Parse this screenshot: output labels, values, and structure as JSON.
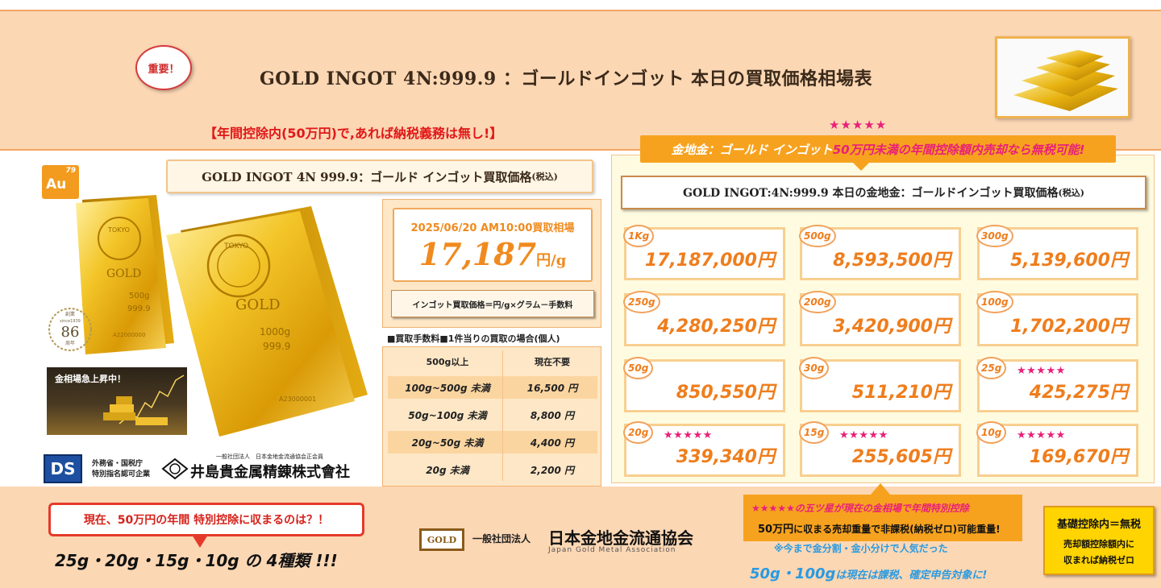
{
  "header": {
    "badge": "重要！",
    "title": "GOLD INGOT 4N:999.9 ：ゴールドインゴット 本日の買取価格相場表",
    "tax_note": "【年間控除内(50万円)で,あれば納税義務は無し!】",
    "stars": "★★★★★"
  },
  "left": {
    "element_symbol": "Au",
    "element_number": "79",
    "title": "GOLD INGOT 4N 999.9：ゴールド インゴット買取価格",
    "title_suffix": "(税込)",
    "ingot_front_text": "GOLD",
    "ingot_front_weight": "1000g",
    "ingot_front_purity": "999.9",
    "ingot_front_serial": "A23000001",
    "ingot_back_weight": "500g",
    "ingot_back_purity": "999.9",
    "ingot_back_serial": "A22000000",
    "ingot_stamp": "TOKYO",
    "anniversary_top": "創業",
    "anniversary_since": "since1939",
    "anniversary_number": "86",
    "anniversary_bottom": "周年",
    "rising_label": "金相場急上昇中！",
    "ds_logo": "DS",
    "ds_line1": "外務省・国税庁",
    "ds_line2": "特別指名認可企業",
    "company_sub": "一般社団法人　日本金地金流通協会正会員",
    "company_name": "井島貴金属精錬株式會社"
  },
  "price": {
    "date": "2025/06/20 AM10:00買取相場",
    "value": "17,187",
    "unit": "円/g",
    "formula": "インゴット買取価格＝円/g×グラム－手数料"
  },
  "fees": {
    "heading": "■買取手数料■1件当りの買取の場合(個人)",
    "rows": [
      {
        "range": "500g以上",
        "fee": "現在不要"
      },
      {
        "range": "100g~500g 未満",
        "fee": "16,500 円"
      },
      {
        "range": "50g~100g 未満",
        "fee": "8,800 円"
      },
      {
        "range": "20g~50g 未満",
        "fee": "4,400 円"
      },
      {
        "range": "20g 未満",
        "fee": "2,200 円"
      }
    ]
  },
  "grid": {
    "banner_a": "金地金：ゴールド インゴット",
    "banner_b": "50万円未満の年間控除額内売却なら無税可能!",
    "title": "GOLD INGOT:4N:999.9 本日の金地金：ゴールドインゴット買取価格",
    "title_suffix": "(税込)",
    "items": [
      {
        "weight": "1Kg",
        "price": "17,187,000円",
        "stars": ""
      },
      {
        "weight": "500g",
        "price": "8,593,500円",
        "stars": ""
      },
      {
        "weight": "300g",
        "price": "5,139,600円",
        "stars": ""
      },
      {
        "weight": "250g",
        "price": "4,280,250円",
        "stars": ""
      },
      {
        "weight": "200g",
        "price": "3,420,900円",
        "stars": ""
      },
      {
        "weight": "100g",
        "price": "1,702,200円",
        "stars": ""
      },
      {
        "weight": "50g",
        "price": "850,550円",
        "stars": ""
      },
      {
        "weight": "30g",
        "price": "511,210円",
        "stars": ""
      },
      {
        "weight": "25g",
        "price": "425,275円",
        "stars": "★★★★★"
      },
      {
        "weight": "20g",
        "price": "339,340円",
        "stars": "★★★★★"
      },
      {
        "weight": "15g",
        "price": "255,605円",
        "stars": "★★★★★"
      },
      {
        "weight": "10g",
        "price": "169,670円",
        "stars": "★★★★★"
      }
    ]
  },
  "bottom": {
    "question": "現在、50万円の年間 特別控除に収まるのは？！",
    "types": "25g・20g・15g・10g の 4種類 !!!",
    "assoc_logo": "GOLD",
    "assoc_pre": "一般社団法人",
    "assoc_name": "日本金地金流通協会",
    "assoc_en": "Japan Gold Metal Association",
    "exempt_line1": "★★★★★の五ツ星が現在の金相場で年間特別控除",
    "exempt_line2_bold": "50万円",
    "exempt_line2_rest": "に収まる売却重量で非課税(納税ゼロ)可能重量!",
    "popular_note": "※今まで金分割・金小分けで人気だった",
    "taxable_bold": "50g・100g",
    "taxable_rest": "は現在は課税、確定申告対象に!",
    "basic_line1": "基礎控除内＝無税",
    "basic_line2": "売却額控除額内に",
    "basic_line3": "収まれば納税ゼロ"
  },
  "colors": {
    "accent_orange": "#f7a21e",
    "price_orange": "#ef7d1c",
    "star_pink": "#e8207a",
    "warning_red": "#e01818",
    "band_peach": "#fcd7b4"
  }
}
